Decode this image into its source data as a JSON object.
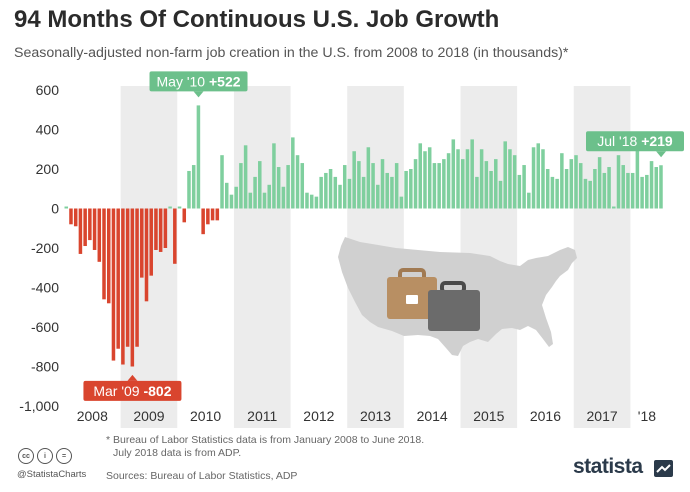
{
  "header": {
    "title": "94 Months Of Continuous U.S. Job Growth",
    "subtitle": "Seasonally-adjusted non-farm job creation in the U.S. from 2008 to 2018 (in thousands)*"
  },
  "colors": {
    "positive": "#7fcf9e",
    "negative": "#d9452e",
    "positive_callout": "#6cc08b",
    "band": "#ececec",
    "map": "#d0d0d0",
    "case_brown": "#b88f63",
    "case_gray": "#6b6b6b"
  },
  "chart_data": {
    "type": "bar",
    "title": "94 Months Of Continuous U.S. Job Growth",
    "subtitle": "Seasonally-adjusted non-farm job creation in the U.S. from 2008 to 2018 (in thousands)*",
    "ylim": [
      -1000,
      600
    ],
    "yticks": [
      -1000,
      -800,
      -600,
      -400,
      -200,
      0,
      200,
      400,
      600
    ],
    "ytick_labels": [
      "-1,000",
      "-800",
      "-600",
      "-400",
      "-200",
      "0",
      "200",
      "400",
      "600"
    ],
    "grid": false,
    "year_labels": [
      "2008",
      "2009",
      "2010",
      "2011",
      "2012",
      "2013",
      "2014",
      "2015",
      "2016",
      "2017",
      "'18"
    ],
    "series": [
      {
        "start": "2008-01",
        "end": "2018-07",
        "values": [
          10,
          -80,
          -90,
          -230,
          -190,
          -160,
          -210,
          -270,
          -460,
          -480,
          -770,
          -710,
          -790,
          -700,
          -800,
          -700,
          -350,
          -470,
          -340,
          -210,
          -220,
          -200,
          10,
          -280,
          10,
          -70,
          190,
          220,
          522,
          -130,
          -80,
          -60,
          -60,
          270,
          130,
          70,
          110,
          230,
          320,
          80,
          160,
          240,
          80,
          120,
          330,
          210,
          110,
          220,
          360,
          270,
          230,
          80,
          70,
          60,
          160,
          180,
          200,
          160,
          120,
          220,
          150,
          290,
          240,
          160,
          310,
          230,
          120,
          250,
          180,
          160,
          230,
          60,
          190,
          200,
          250,
          330,
          290,
          310,
          230,
          230,
          250,
          280,
          350,
          300,
          250,
          300,
          350,
          160,
          300,
          240,
          190,
          250,
          140,
          340,
          300,
          270,
          170,
          220,
          80,
          310,
          330,
          300,
          200,
          160,
          150,
          280,
          200,
          250,
          270,
          230,
          150,
          140,
          200,
          260,
          180,
          210,
          10,
          270,
          220,
          180,
          180,
          320,
          160,
          170,
          240,
          210,
          219
        ]
      }
    ],
    "annotations": [
      {
        "label": "May '10",
        "value_text": "+522",
        "date": "2010-05",
        "value": 522
      },
      {
        "label": "Mar '09",
        "value_text": "-802",
        "date": "2009-03",
        "value": -802
      },
      {
        "label": "Jul '18",
        "value_text": "+219",
        "date": "2018-07",
        "value": 219
      }
    ]
  },
  "footnote": {
    "line1": "* Bureau of Labor Statistics data is from January 2008 to June 2018.",
    "line2": "July 2018 data is from ADP."
  },
  "credit": "Sources: Bureau of Labor Statistics, ADP",
  "handle": "@StatistaCharts",
  "cc_icons": [
    "cc",
    "i",
    "="
  ],
  "brand": "statista"
}
